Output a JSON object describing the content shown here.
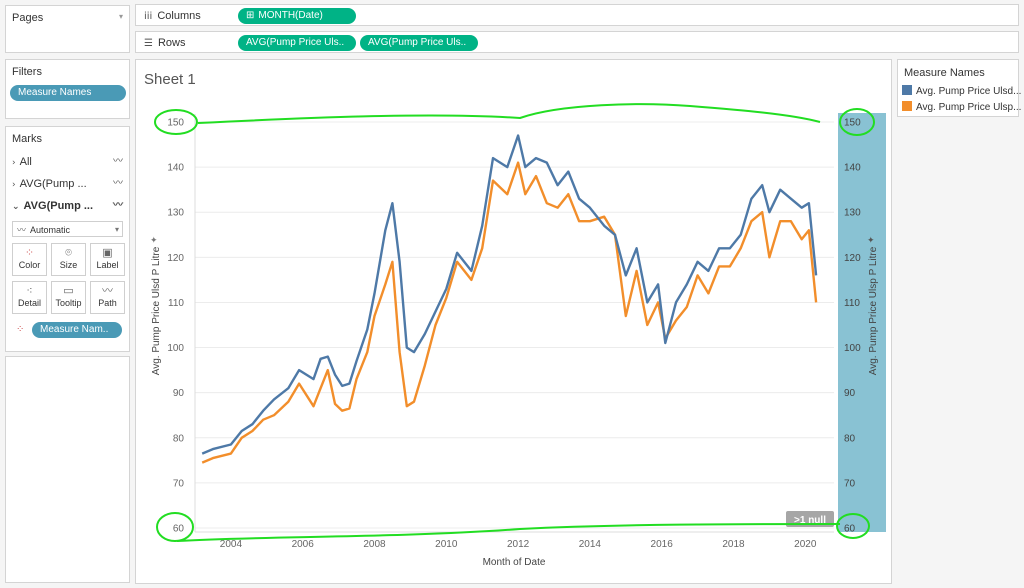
{
  "pages": {
    "label": "Pages"
  },
  "columns": {
    "label": "Columns",
    "pill": "MONTH(Date)"
  },
  "rows": {
    "label": "Rows",
    "pills": [
      "AVG(Pump Price Uls..",
      "AVG(Pump Price Uls.."
    ]
  },
  "filters": {
    "label": "Filters",
    "pill": "Measure Names"
  },
  "marks": {
    "label": "Marks",
    "rows": [
      "All",
      "AVG(Pump ...",
      "AVG(Pump ..."
    ],
    "type": "Automatic",
    "buttons": [
      "Color",
      "Size",
      "Label",
      "Detail",
      "Tooltip",
      "Path"
    ],
    "pill": "Measure Nam.."
  },
  "sheet": {
    "title": "Sheet 1",
    "null_badge": ">1 null"
  },
  "legend": {
    "title": "Measure Names",
    "items": [
      {
        "label": "Avg. Pump Price Ulsd...",
        "color": "#4e79a7"
      },
      {
        "label": "Avg. Pump Price Ulsp...",
        "color": "#f28e2b"
      }
    ]
  },
  "chart_data": {
    "type": "line",
    "title": "",
    "xlabel": "Month of Date",
    "ylabel_left": "Avg. Pump Price Ulsd P Litre",
    "ylabel_right": "Avg. Pump Price Ulsp P Litre",
    "ylim": [
      60,
      150
    ],
    "xlim": [
      2003,
      2020.8
    ],
    "x_ticks": [
      "2004",
      "2006",
      "2008",
      "2010",
      "2012",
      "2014",
      "2016",
      "2018",
      "2020"
    ],
    "y_ticks": [
      "60",
      "70",
      "80",
      "90",
      "100",
      "110",
      "120",
      "130",
      "140",
      "150"
    ],
    "x": [
      2003.2,
      2003.5,
      2004.0,
      2004.3,
      2004.6,
      2004.9,
      2005.2,
      2005.6,
      2005.9,
      2006.3,
      2006.5,
      2006.7,
      2006.9,
      2007.1,
      2007.3,
      2007.5,
      2007.8,
      2008.0,
      2008.3,
      2008.5,
      2008.7,
      2008.9,
      2009.1,
      2009.4,
      2009.7,
      2010.0,
      2010.3,
      2010.7,
      2011.0,
      2011.3,
      2011.7,
      2012.0,
      2012.2,
      2012.5,
      2012.8,
      2013.1,
      2013.4,
      2013.7,
      2014.0,
      2014.4,
      2014.7,
      2015.0,
      2015.3,
      2015.6,
      2015.9,
      2016.1,
      2016.4,
      2016.7,
      2017.0,
      2017.3,
      2017.6,
      2017.9,
      2018.2,
      2018.5,
      2018.8,
      2019.0,
      2019.3,
      2019.6,
      2019.9,
      2020.1,
      2020.3
    ],
    "series": [
      {
        "name": "Avg. Pump Price Ulsd...",
        "color": "#4e79a7",
        "values": [
          76.5,
          77.5,
          78.5,
          81.5,
          83,
          86,
          88.5,
          91,
          95,
          93,
          97.5,
          98,
          94,
          91.5,
          92,
          97,
          104,
          112,
          126,
          132,
          119,
          100,
          99,
          103,
          108,
          113,
          121,
          117,
          127,
          142,
          140,
          147,
          140,
          142,
          141,
          136,
          139,
          133,
          131,
          127,
          125,
          116,
          122,
          110,
          114,
          101,
          110,
          114,
          119,
          117,
          122,
          122,
          125,
          133,
          136,
          130,
          135,
          133,
          131,
          132,
          116
        ]
      },
      {
        "name": "Avg. Pump Price Ulsp...",
        "color": "#f28e2b",
        "values": [
          74.5,
          75.5,
          76.5,
          80,
          81.5,
          84,
          85,
          88,
          92,
          87,
          91,
          95,
          87.5,
          86,
          86.5,
          93,
          99,
          107,
          114,
          119,
          99,
          87,
          88,
          96,
          105,
          111,
          119,
          115,
          122,
          137,
          134,
          141,
          134,
          138,
          132,
          131,
          134,
          128,
          128,
          129,
          125,
          107,
          117,
          105,
          110,
          102,
          106,
          109,
          116,
          112,
          118,
          118,
          122,
          128,
          130,
          120,
          128,
          128,
          124,
          126,
          110
        ]
      }
    ]
  }
}
